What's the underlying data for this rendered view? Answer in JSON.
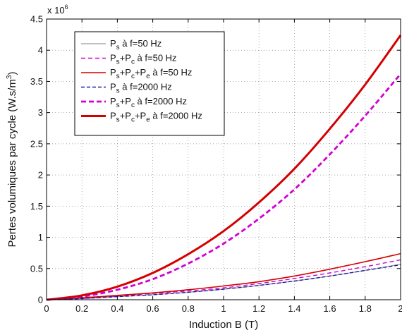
{
  "chart_data": {
    "type": "line",
    "xlabel": "Induction B (T)",
    "ylabel": "Pertes volumiques par cycle (W.s/m",
    "ylabel_sup": "3",
    "ylabel_close": ")",
    "y_multiplier_base": "x 10",
    "y_multiplier_exp": "6",
    "xlim": [
      0,
      2
    ],
    "ylim": [
      0,
      4.5
    ],
    "x_ticks": [
      "0",
      "0.2",
      "0.4",
      "0.6",
      "0.8",
      "1",
      "1.2",
      "1.4",
      "1.6",
      "1.8",
      "2"
    ],
    "y_ticks": [
      "0",
      "0.5",
      "1",
      "1.5",
      "2",
      "2.5",
      "3",
      "3.5",
      "4",
      "4.5"
    ],
    "grid": true,
    "legend_position": "top-left",
    "x": [
      0,
      0.2,
      0.4,
      0.6,
      0.8,
      1.0,
      1.2,
      1.4,
      1.6,
      1.8,
      2.0
    ],
    "series": [
      {
        "legend": [
          {
            "t": "P"
          },
          {
            "t": "s",
            "sub": true
          },
          {
            "t": " à f=50 Hz"
          }
        ],
        "color": "#9a9a9a",
        "width": 1.2,
        "dash": "",
        "values": [
          0,
          0.02,
          0.05,
          0.08,
          0.12,
          0.17,
          0.23,
          0.3,
          0.38,
          0.47,
          0.57
        ]
      },
      {
        "legend": [
          {
            "t": "P"
          },
          {
            "t": "s",
            "sub": true
          },
          {
            "t": "+P"
          },
          {
            "t": "c",
            "sub": true
          },
          {
            "t": " à f=50 Hz"
          }
        ],
        "color": "#d200d2",
        "width": 1.4,
        "dash": "6,4",
        "values": [
          0,
          0.02,
          0.06,
          0.1,
          0.14,
          0.19,
          0.26,
          0.34,
          0.43,
          0.53,
          0.64
        ]
      },
      {
        "legend": [
          {
            "t": "P"
          },
          {
            "t": "s",
            "sub": true
          },
          {
            "t": "+P"
          },
          {
            "t": "c",
            "sub": true
          },
          {
            "t": "+P"
          },
          {
            "t": "e",
            "sub": true
          },
          {
            "t": " à f=50 Hz"
          }
        ],
        "color": "#d40000",
        "width": 1.6,
        "dash": "",
        "values": [
          0,
          0.03,
          0.07,
          0.11,
          0.16,
          0.22,
          0.29,
          0.38,
          0.49,
          0.61,
          0.74
        ]
      },
      {
        "legend": [
          {
            "t": "P"
          },
          {
            "t": "s",
            "sub": true
          },
          {
            "t": " à f=2000 Hz"
          }
        ],
        "color": "#1a1aa6",
        "width": 1.4,
        "dash": "5,3",
        "values": [
          0,
          0.02,
          0.05,
          0.08,
          0.12,
          0.17,
          0.23,
          0.3,
          0.38,
          0.47,
          0.56
        ]
      },
      {
        "legend": [
          {
            "t": "P"
          },
          {
            "t": "s",
            "sub": true
          },
          {
            "t": "+P"
          },
          {
            "t": "c",
            "sub": true
          },
          {
            "t": " à f=2000 Hz"
          }
        ],
        "color": "#d200d2",
        "width": 2.8,
        "dash": "7,4",
        "values": [
          0,
          0.05,
          0.16,
          0.33,
          0.58,
          0.9,
          1.3,
          1.77,
          2.33,
          2.95,
          3.62
        ]
      },
      {
        "legend": [
          {
            "t": "P"
          },
          {
            "t": "s",
            "sub": true
          },
          {
            "t": "+P"
          },
          {
            "t": "c",
            "sub": true
          },
          {
            "t": "+P"
          },
          {
            "t": "e",
            "sub": true
          },
          {
            "t": " à f=2000 Hz"
          }
        ],
        "color": "#d40000",
        "width": 3.0,
        "dash": "",
        "values": [
          0,
          0.07,
          0.21,
          0.43,
          0.73,
          1.1,
          1.56,
          2.1,
          2.74,
          3.45,
          4.24
        ]
      }
    ]
  }
}
